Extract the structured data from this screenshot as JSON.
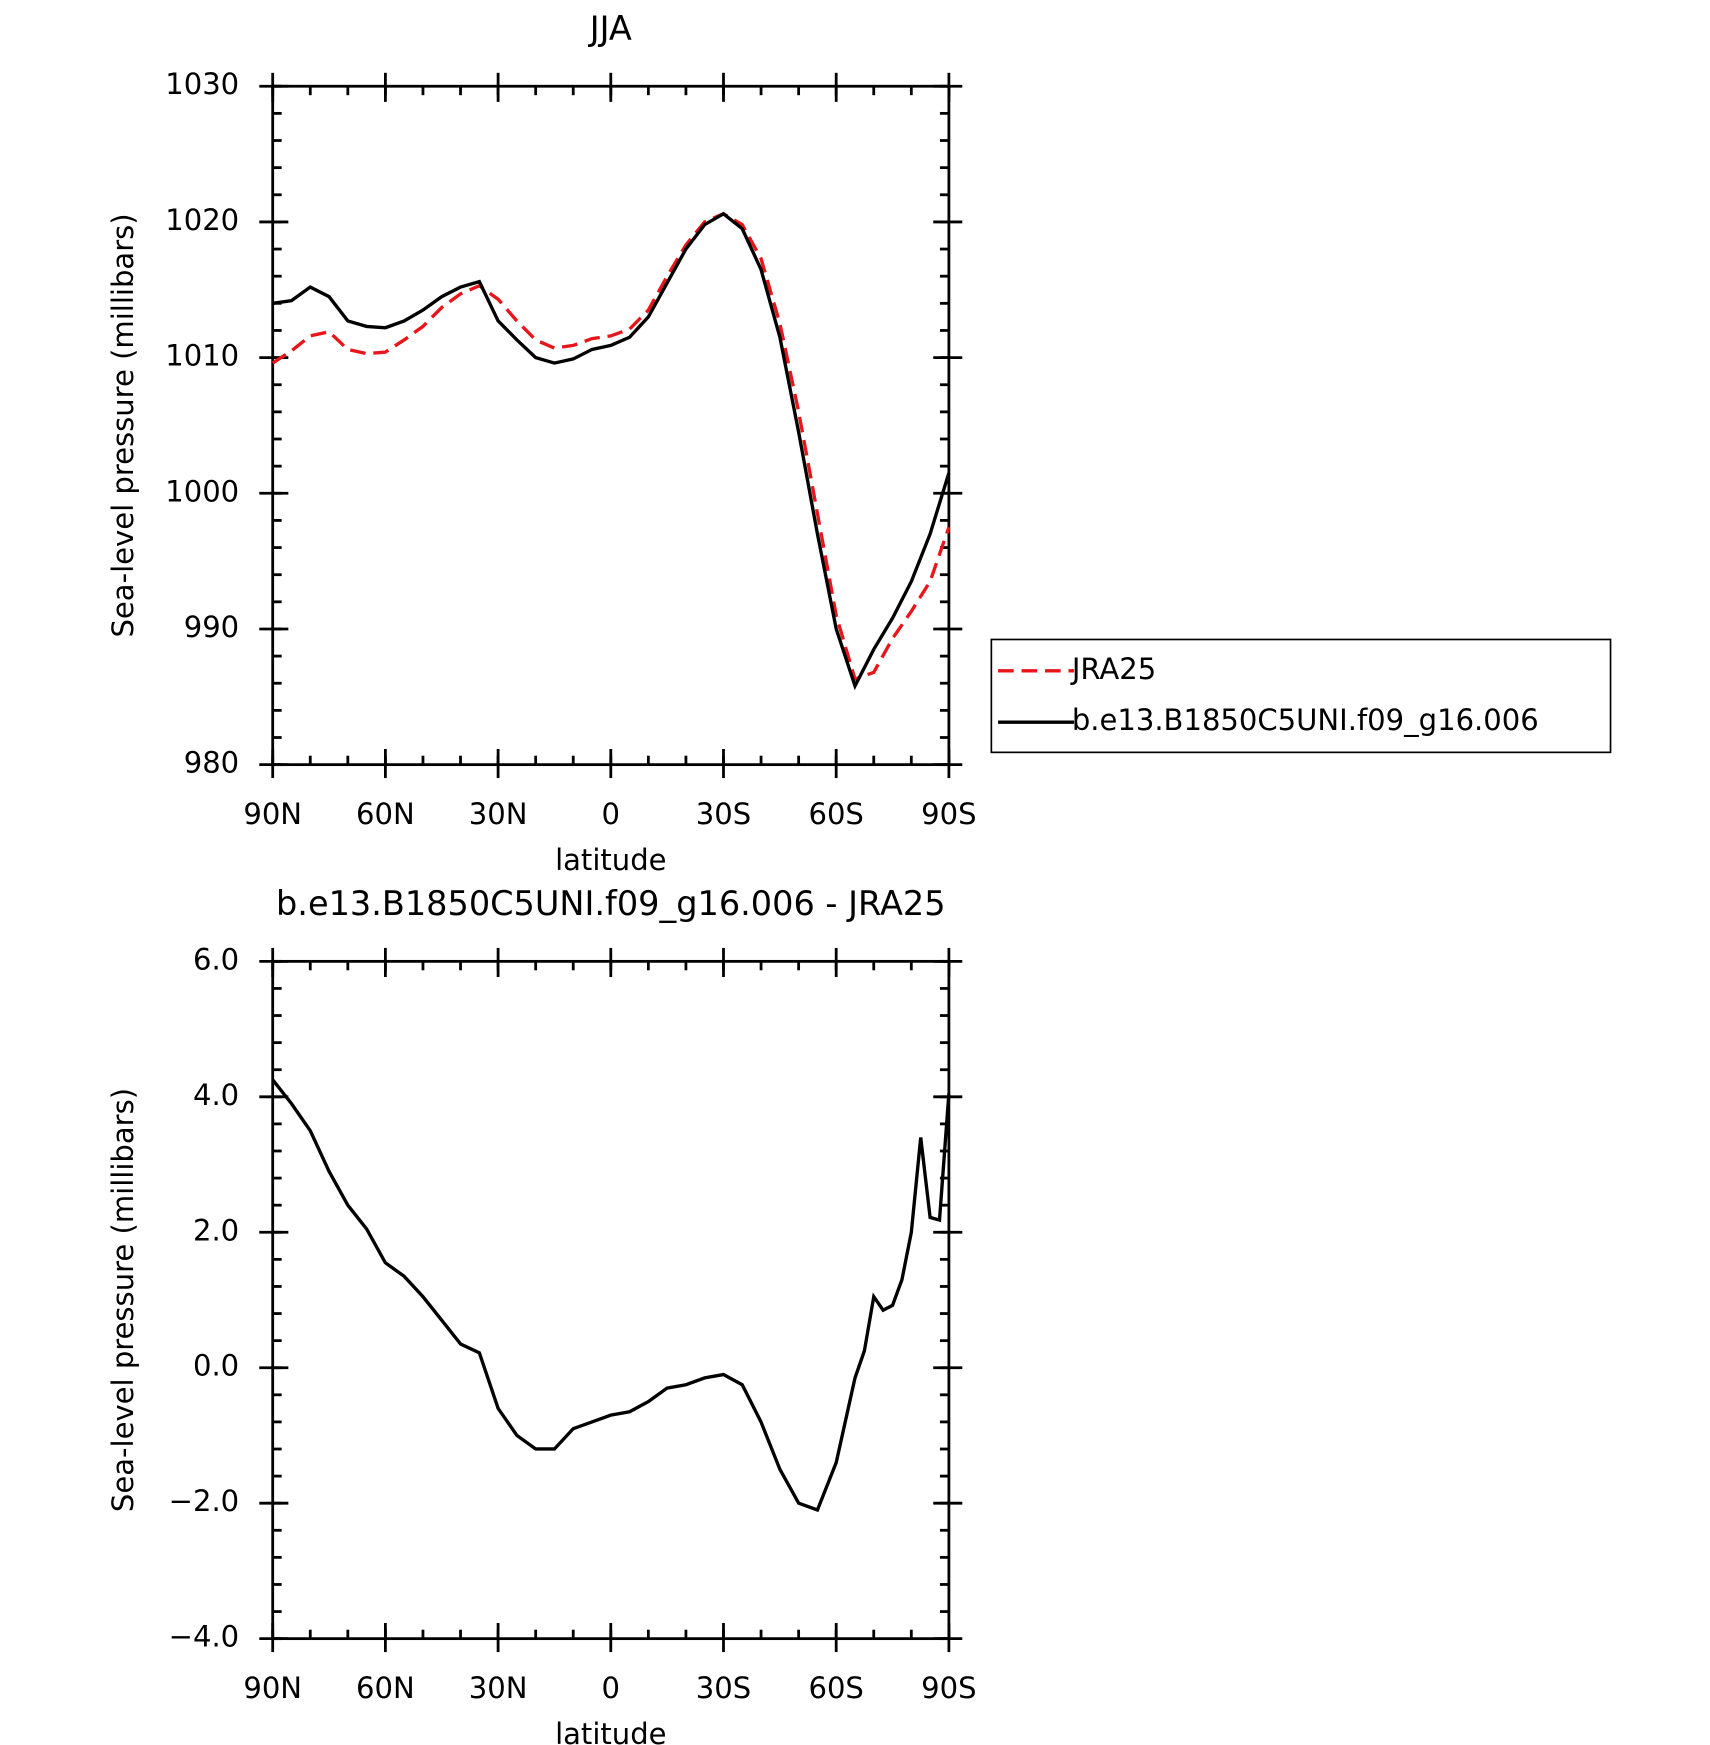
{
  "chart_data": [
    {
      "type": "line",
      "title": "JJA",
      "x_label": "latitude",
      "y_label": "Sea-level pressure (millibars)",
      "x": [
        90,
        85,
        80,
        75,
        70,
        65,
        60,
        55,
        50,
        45,
        40,
        35,
        30,
        25,
        20,
        15,
        10,
        5,
        0,
        -5,
        -10,
        -15,
        -20,
        -25,
        -30,
        -35,
        -40,
        -45,
        -50,
        -55,
        -60,
        -65,
        -70,
        -75,
        -80,
        -85,
        -90
      ],
      "series": [
        {
          "name": "JRA25",
          "color": "#e8161b",
          "dash": true,
          "values": [
            1009.6,
            1010.5,
            1011.6,
            1011.9,
            1010.6,
            1010.3,
            1010.4,
            1011.3,
            1012.3,
            1013.7,
            1014.7,
            1015.3,
            1014.3,
            1012.7,
            1011.3,
            1010.7,
            1010.9,
            1011.4,
            1011.6,
            1012.1,
            1013.5,
            1016.0,
            1018.3,
            1020.0,
            1020.6,
            1019.8,
            1017.3,
            1012.5,
            1006.0,
            998.5,
            991.0,
            986.3,
            986.8,
            989.3,
            991.3,
            993.5,
            997.5
          ]
        },
        {
          "name": "b.e13.B1850C5UNI.f09_g16.006",
          "color": "#000000",
          "dash": false,
          "values": [
            1014.0,
            1014.2,
            1015.2,
            1014.5,
            1012.7,
            1012.3,
            1012.2,
            1012.7,
            1013.5,
            1014.5,
            1015.2,
            1015.6,
            1012.7,
            1011.3,
            1010.0,
            1009.6,
            1009.9,
            1010.6,
            1010.9,
            1011.5,
            1013.0,
            1015.5,
            1018.0,
            1019.8,
            1020.6,
            1019.5,
            1016.5,
            1011.5,
            1004.5,
            997.0,
            990.0,
            985.8,
            988.5,
            990.8,
            993.5,
            997.0,
            1001.5
          ]
        }
      ],
      "xlim": [
        90,
        -90
      ],
      "xticks": [
        {
          "value": 90,
          "label": "90N"
        },
        {
          "value": 60,
          "label": "60N"
        },
        {
          "value": 30,
          "label": "30N"
        },
        0,
        {
          "value": -30,
          "label": "30S"
        },
        {
          "value": -60,
          "label": "60S"
        },
        {
          "value": -90,
          "label": "90S"
        }
      ],
      "ylim": [
        980,
        1030
      ],
      "yticks": [
        980,
        990,
        1000,
        1010,
        1020,
        1030
      ],
      "legend": "right"
    },
    {
      "type": "line",
      "title": "b.e13.B1850C5UNI.f09_g16.006 - JRA25",
      "x_label": "latitude",
      "y_label": "Sea-level pressure (millibars)",
      "x": [
        90,
        85,
        80,
        75,
        70,
        65,
        60,
        55,
        50,
        45,
        40,
        35,
        30,
        25,
        20,
        15,
        10,
        5,
        0,
        -5,
        -10,
        -15,
        -20,
        -25,
        -30,
        -35,
        -40,
        -45,
        -50,
        -55,
        -60,
        -65,
        -67.5,
        -70,
        -72.5,
        -75,
        -77.5,
        -80,
        -82.5,
        -85,
        -87.5,
        -90
      ],
      "series": [
        {
          "color": "#000000",
          "dash": false,
          "values": [
            4.25,
            3.9,
            3.5,
            2.9,
            2.4,
            2.05,
            1.55,
            1.35,
            1.05,
            0.7,
            0.35,
            0.22,
            -0.6,
            -1.0,
            -1.2,
            -1.2,
            -0.9,
            -0.8,
            -0.7,
            -0.65,
            -0.5,
            -0.3,
            -0.25,
            -0.15,
            -0.1,
            -0.25,
            -0.8,
            -1.5,
            -2.0,
            -2.1,
            -1.4,
            -0.15,
            0.25,
            1.05,
            0.85,
            0.92,
            1.3,
            2.0,
            3.4,
            2.22,
            2.18,
            4.05
          ]
        }
      ],
      "xlim": [
        90,
        -90
      ],
      "xticks": [
        {
          "value": 90,
          "label": "90N"
        },
        {
          "value": 60,
          "label": "60N"
        },
        {
          "value": 30,
          "label": "30N"
        },
        0,
        {
          "value": -30,
          "label": "30S"
        },
        {
          "value": -60,
          "label": "60S"
        },
        {
          "value": -90,
          "label": "90S"
        }
      ],
      "ylim": [
        -4,
        6
      ],
      "yticks": [
        {
          "value": -4,
          "label": "−4.0"
        },
        {
          "value": -2,
          "label": "−2.0"
        },
        {
          "value": 0,
          "label": "0.0"
        },
        {
          "value": 2,
          "label": "2.0"
        },
        {
          "value": 4,
          "label": "4.0"
        },
        {
          "value": 6,
          "label": "6.0"
        }
      ]
    }
  ]
}
